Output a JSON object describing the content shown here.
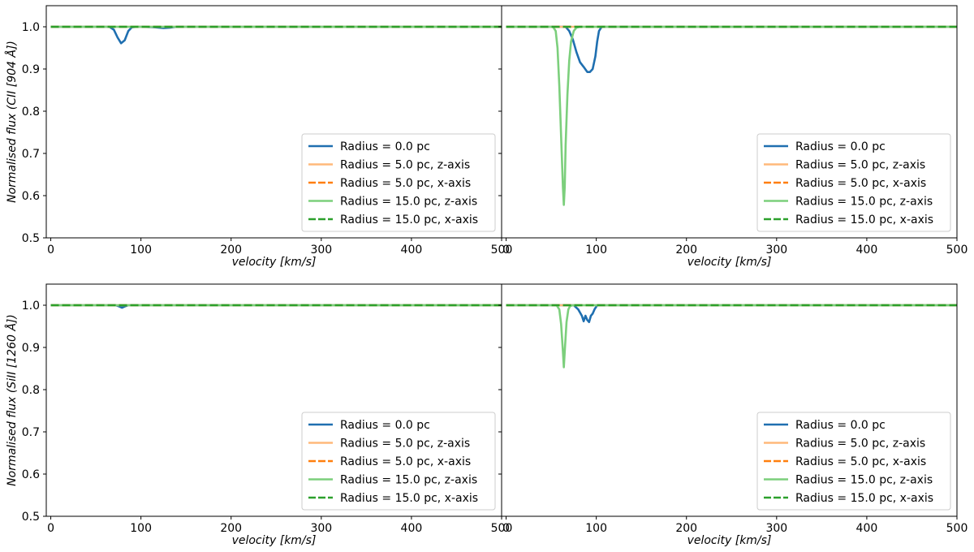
{
  "chart_data": [
    {
      "type": "line",
      "panel": "top-left",
      "xlabel": "velocity [km/s]",
      "ylabel": "Normalised flux (CII [904 Å])",
      "xlim": [
        -5,
        500
      ],
      "ylim": [
        0.5,
        1.05
      ],
      "xticks": [
        0,
        100,
        200,
        300,
        400,
        500
      ],
      "yticks": [
        0.5,
        0.6,
        0.7,
        0.8,
        0.9,
        1.0
      ],
      "legend_position": "lower-right",
      "series": [
        {
          "name": "Radius = 0.0 pc",
          "color": "#1f6fb0",
          "dash": "solid",
          "x": [
            0,
            65,
            70,
            74,
            78,
            82,
            86,
            90,
            96,
            100,
            115,
            125,
            132,
            140,
            500
          ],
          "y": [
            1.0,
            1.0,
            0.993,
            0.975,
            0.961,
            0.968,
            0.99,
            0.999,
            1.0,
            1.0,
            0.999,
            0.997,
            0.998,
            1.0,
            1.0
          ]
        },
        {
          "name": "Radius = 5.0 pc, z-axis",
          "color": "#ffb97a",
          "dash": "solid",
          "x": [
            0,
            500
          ],
          "y": [
            1.0,
            1.0
          ]
        },
        {
          "name": "Radius = 5.0 pc, x-axis",
          "color": "#ff7f0e",
          "dash": "dashed",
          "x": [
            0,
            500
          ],
          "y": [
            1.0,
            1.0
          ]
        },
        {
          "name": "Radius = 15.0 pc, z-axis",
          "color": "#7ccf7c",
          "dash": "solid",
          "x": [
            0,
            500
          ],
          "y": [
            1.0,
            1.0
          ]
        },
        {
          "name": "Radius = 15.0 pc, x-axis",
          "color": "#2ca02c",
          "dash": "dashed",
          "x": [
            0,
            500
          ],
          "y": [
            1.0,
            1.0
          ]
        }
      ]
    },
    {
      "type": "line",
      "panel": "top-right",
      "xlabel": "velocity [km/s]",
      "ylabel": "",
      "xlim": [
        -5,
        500
      ],
      "ylim": [
        0.5,
        1.05
      ],
      "xticks": [
        0,
        100,
        200,
        300,
        400,
        500
      ],
      "yticks": [
        0.5,
        0.6,
        0.7,
        0.8,
        0.9,
        1.0
      ],
      "legend_position": "lower-right",
      "series": [
        {
          "name": "Radius = 0.0 pc",
          "color": "#1f6fb0",
          "dash": "solid",
          "x": [
            0,
            60,
            66,
            70,
            74,
            78,
            82,
            86,
            90,
            93,
            96,
            99,
            101,
            103,
            106,
            500
          ],
          "y": [
            1.0,
            1.0,
            1.0,
            0.99,
            0.97,
            0.94,
            0.916,
            0.905,
            0.893,
            0.893,
            0.9,
            0.93,
            0.965,
            0.99,
            1.0,
            1.0
          ]
        },
        {
          "name": "Radius = 5.0 pc, z-axis",
          "color": "#ffb97a",
          "dash": "solid",
          "x": [
            0,
            500
          ],
          "y": [
            1.0,
            1.0
          ]
        },
        {
          "name": "Radius = 5.0 pc, x-axis",
          "color": "#ff7f0e",
          "dash": "dashed",
          "x": [
            0,
            500
          ],
          "y": [
            1.0,
            1.0
          ]
        },
        {
          "name": "Radius = 15.0 pc, z-axis",
          "color": "#7ccf7c",
          "dash": "solid",
          "x": [
            0,
            52,
            55,
            57,
            59,
            61,
            63,
            64,
            65,
            66,
            68,
            70,
            72,
            75,
            78,
            82,
            500
          ],
          "y": [
            1.0,
            1.0,
            0.99,
            0.95,
            0.86,
            0.74,
            0.62,
            0.578,
            0.62,
            0.72,
            0.84,
            0.92,
            0.965,
            0.99,
            0.998,
            1.0,
            1.0
          ]
        },
        {
          "name": "Radius = 15.0 pc, x-axis",
          "color": "#2ca02c",
          "dash": "dashed",
          "x": [
            0,
            500
          ],
          "y": [
            1.0,
            1.0
          ]
        }
      ]
    },
    {
      "type": "line",
      "panel": "bottom-left",
      "xlabel": "velocity [km/s]",
      "ylabel": "Normalised flux (SiII [1260 Å])",
      "xlim": [
        -5,
        500
      ],
      "ylim": [
        0.5,
        1.05
      ],
      "xticks": [
        0,
        100,
        200,
        300,
        400,
        500
      ],
      "yticks": [
        0.5,
        0.6,
        0.7,
        0.8,
        0.9,
        1.0
      ],
      "legend_position": "lower-right",
      "series": [
        {
          "name": "Radius = 0.0 pc",
          "color": "#1f6fb0",
          "dash": "solid",
          "x": [
            0,
            72,
            76,
            79,
            82,
            86,
            500
          ],
          "y": [
            1.0,
            1.0,
            0.997,
            0.994,
            0.997,
            1.0,
            1.0
          ]
        },
        {
          "name": "Radius = 5.0 pc, z-axis",
          "color": "#ffb97a",
          "dash": "solid",
          "x": [
            0,
            500
          ],
          "y": [
            1.0,
            1.0
          ]
        },
        {
          "name": "Radius = 5.0 pc, x-axis",
          "color": "#ff7f0e",
          "dash": "dashed",
          "x": [
            0,
            500
          ],
          "y": [
            1.0,
            1.0
          ]
        },
        {
          "name": "Radius = 15.0 pc, z-axis",
          "color": "#7ccf7c",
          "dash": "solid",
          "x": [
            0,
            500
          ],
          "y": [
            1.0,
            1.0
          ]
        },
        {
          "name": "Radius = 15.0 pc, x-axis",
          "color": "#2ca02c",
          "dash": "dashed",
          "x": [
            0,
            500
          ],
          "y": [
            1.0,
            1.0
          ]
        }
      ]
    },
    {
      "type": "line",
      "panel": "bottom-right",
      "xlabel": "velocity [km/s]",
      "ylabel": "",
      "xlim": [
        -5,
        500
      ],
      "ylim": [
        0.5,
        1.05
      ],
      "xticks": [
        0,
        100,
        200,
        300,
        400,
        500
      ],
      "yticks": [
        0.5,
        0.6,
        0.7,
        0.8,
        0.9,
        1.0
      ],
      "legend_position": "lower-right",
      "series": [
        {
          "name": "Radius = 0.0 pc",
          "color": "#1f6fb0",
          "dash": "solid",
          "x": [
            0,
            75,
            80,
            84,
            86,
            88,
            90,
            92,
            94,
            96,
            98,
            101,
            500
          ],
          "y": [
            1.0,
            1.0,
            0.99,
            0.975,
            0.962,
            0.975,
            0.965,
            0.96,
            0.975,
            0.98,
            0.99,
            1.0,
            1.0
          ]
        },
        {
          "name": "Radius = 5.0 pc, z-axis",
          "color": "#ffb97a",
          "dash": "solid",
          "x": [
            0,
            500
          ],
          "y": [
            1.0,
            1.0
          ]
        },
        {
          "name": "Radius = 5.0 pc, x-axis",
          "color": "#ff7f0e",
          "dash": "dashed",
          "x": [
            0,
            500
          ],
          "y": [
            1.0,
            1.0
          ]
        },
        {
          "name": "Radius = 15.0 pc, z-axis",
          "color": "#7ccf7c",
          "dash": "solid",
          "x": [
            0,
            56,
            59,
            61,
            63,
            64,
            65,
            67,
            69,
            71,
            74,
            500
          ],
          "y": [
            1.0,
            1.0,
            0.99,
            0.955,
            0.89,
            0.853,
            0.89,
            0.96,
            0.99,
            0.998,
            1.0,
            1.0
          ]
        },
        {
          "name": "Radius = 15.0 pc, x-axis",
          "color": "#2ca02c",
          "dash": "dashed",
          "x": [
            0,
            500
          ],
          "y": [
            1.0,
            1.0
          ]
        }
      ]
    }
  ]
}
